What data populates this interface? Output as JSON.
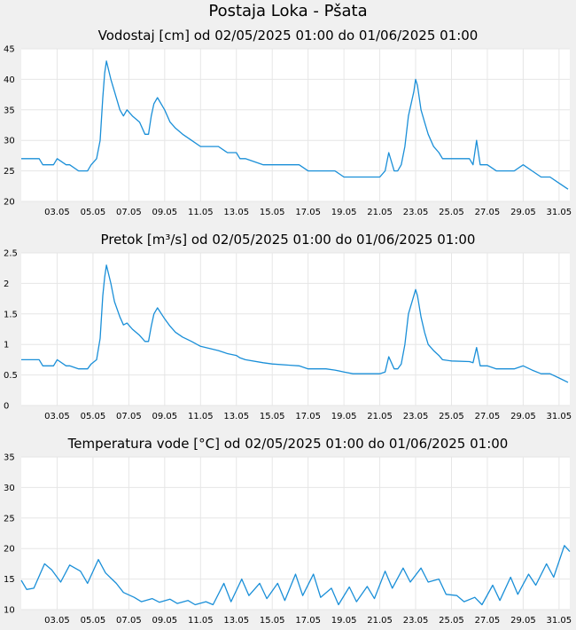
{
  "page_title": "Postaja Loka - Pšata",
  "chart_data": [
    {
      "type": "line",
      "title": "Vodostaj [cm] od 02/05/2025 01:00 do 01/06/2025 01:00",
      "ylim": [
        20,
        45
      ],
      "yticks": [
        "20",
        "25",
        "30",
        "35",
        "40",
        "45"
      ],
      "xlim_days": [
        1.0,
        31.6
      ],
      "xticks": [
        "03.05",
        "05.05",
        "07.05",
        "09.05",
        "11.05",
        "13.05",
        "15.05",
        "17.05",
        "19.05",
        "21.05",
        "23.05",
        "25.05",
        "27.05",
        "29.05",
        "31.05"
      ],
      "grid": true,
      "color": "#1a8fd8",
      "series": [
        {
          "x": [
            1.0,
            2.0,
            2.2,
            2.8,
            3.0,
            3.5,
            3.7,
            4.2,
            4.7,
            4.9,
            5.2,
            5.4,
            5.55,
            5.65,
            5.75,
            6.0,
            6.2,
            6.5,
            6.7,
            6.9,
            7.2,
            7.6,
            7.9,
            8.1,
            8.25,
            8.4,
            8.6,
            9.0,
            9.3,
            9.6,
            10.0,
            10.5,
            11.0,
            12.0,
            12.5,
            13.0,
            13.2,
            13.5,
            14.5,
            15.0,
            16.0,
            16.5,
            17.0,
            18.0,
            18.5,
            19.0,
            19.5,
            20.0,
            20.5,
            21.0,
            21.3,
            21.5,
            21.8,
            22.0,
            22.2,
            22.4,
            22.6,
            22.9,
            23.0,
            23.1,
            23.3,
            23.5,
            23.7,
            24.0,
            24.3,
            24.5,
            25.0,
            26.0,
            26.2,
            26.4,
            26.6,
            27.0,
            27.5,
            28.0,
            28.5,
            29.0,
            29.5,
            30.0,
            30.5,
            31.0,
            31.5
          ],
          "y": [
            27,
            27,
            26,
            26,
            27,
            26,
            26,
            25,
            25,
            26,
            27,
            30,
            37,
            41,
            43,
            40,
            38,
            35,
            34,
            35,
            34,
            33,
            31,
            31,
            34,
            36,
            37,
            35,
            33,
            32,
            31,
            30,
            29,
            29,
            28,
            28,
            27,
            27,
            26,
            26,
            26,
            26,
            25,
            25,
            25,
            24,
            24,
            24,
            24,
            24,
            25,
            28,
            25,
            25,
            26,
            29,
            34,
            38,
            40,
            39,
            35,
            33,
            31,
            29,
            28,
            27,
            27,
            27,
            26,
            30,
            26,
            26,
            25,
            25,
            25,
            26,
            25,
            24,
            24,
            23,
            22
          ]
        }
      ]
    },
    {
      "type": "line",
      "title": "Pretok [m³/s] od 02/05/2025 01:00 do 01/06/2025 01:00",
      "ylim": [
        0,
        2.5
      ],
      "yticks": [
        "0",
        "0.5",
        "1",
        "1.5",
        "2",
        "2.5"
      ],
      "xlim_days": [
        1.0,
        31.6
      ],
      "xticks": [
        "03.05",
        "05.05",
        "07.05",
        "09.05",
        "11.05",
        "13.05",
        "15.05",
        "17.05",
        "19.05",
        "21.05",
        "23.05",
        "25.05",
        "27.05",
        "29.05",
        "31.05"
      ],
      "grid": true,
      "color": "#1a8fd8",
      "series": [
        {
          "x": [
            1.0,
            2.0,
            2.2,
            2.8,
            3.0,
            3.5,
            3.7,
            4.2,
            4.7,
            4.9,
            5.2,
            5.4,
            5.55,
            5.65,
            5.75,
            6.0,
            6.2,
            6.5,
            6.7,
            6.9,
            7.2,
            7.6,
            7.9,
            8.1,
            8.25,
            8.4,
            8.6,
            9.0,
            9.3,
            9.6,
            10.0,
            10.5,
            11.0,
            12.0,
            12.5,
            13.0,
            13.2,
            13.5,
            14.5,
            15.0,
            16.0,
            16.5,
            17.0,
            18.0,
            18.5,
            19.0,
            19.5,
            20.0,
            20.5,
            21.0,
            21.3,
            21.5,
            21.8,
            22.0,
            22.2,
            22.4,
            22.6,
            22.9,
            23.0,
            23.1,
            23.3,
            23.5,
            23.7,
            24.0,
            24.3,
            24.5,
            25.0,
            26.0,
            26.2,
            26.4,
            26.6,
            27.0,
            27.5,
            28.0,
            28.5,
            29.0,
            29.5,
            30.0,
            30.5,
            31.0,
            31.5
          ],
          "y": [
            0.75,
            0.75,
            0.65,
            0.65,
            0.75,
            0.65,
            0.65,
            0.6,
            0.6,
            0.68,
            0.75,
            1.1,
            1.8,
            2.1,
            2.3,
            2.0,
            1.7,
            1.45,
            1.32,
            1.35,
            1.25,
            1.15,
            1.05,
            1.05,
            1.3,
            1.5,
            1.6,
            1.42,
            1.3,
            1.2,
            1.12,
            1.05,
            0.97,
            0.9,
            0.85,
            0.82,
            0.78,
            0.75,
            0.7,
            0.68,
            0.66,
            0.65,
            0.6,
            0.6,
            0.58,
            0.55,
            0.52,
            0.52,
            0.52,
            0.52,
            0.55,
            0.8,
            0.6,
            0.6,
            0.68,
            1.0,
            1.5,
            1.8,
            1.9,
            1.8,
            1.45,
            1.2,
            1.0,
            0.9,
            0.82,
            0.75,
            0.73,
            0.72,
            0.7,
            0.95,
            0.65,
            0.65,
            0.6,
            0.6,
            0.6,
            0.65,
            0.58,
            0.52,
            0.52,
            0.45,
            0.38
          ]
        }
      ]
    },
    {
      "type": "line",
      "title": "Temperatura vode [°C] od 02/05/2025 01:00 do 01/06/2025 01:00",
      "ylim": [
        10,
        35
      ],
      "yticks": [
        "10",
        "15",
        "20",
        "25",
        "30",
        "35"
      ],
      "xlim_days": [
        1.0,
        31.6
      ],
      "xticks": [
        "03.05",
        "05.05",
        "07.05",
        "09.05",
        "11.05",
        "13.05",
        "15.05",
        "17.05",
        "19.05",
        "21.05",
        "23.05",
        "25.05",
        "27.05",
        "29.05",
        "31.05"
      ],
      "grid": true,
      "color": "#1a8fd8",
      "series": [
        {
          "x": [
            1.0,
            1.3,
            1.7,
            2.3,
            2.7,
            3.2,
            3.7,
            4.3,
            4.7,
            5.3,
            5.7,
            6.3,
            6.7,
            7.3,
            7.7,
            8.3,
            8.7,
            9.3,
            9.7,
            10.3,
            10.7,
            11.3,
            11.7,
            12.3,
            12.7,
            13.3,
            13.7,
            14.3,
            14.7,
            15.3,
            15.7,
            16.3,
            16.7,
            17.3,
            17.7,
            18.3,
            18.7,
            19.3,
            19.7,
            20.3,
            20.7,
            21.3,
            21.7,
            22.3,
            22.7,
            23.3,
            23.7,
            24.3,
            24.7,
            25.3,
            25.7,
            26.3,
            26.7,
            27.3,
            27.7,
            28.3,
            28.7,
            29.3,
            29.7,
            30.3,
            30.7,
            31.3,
            31.6
          ],
          "y": [
            14.8,
            13.3,
            13.5,
            17.5,
            16.5,
            14.5,
            17.3,
            16.3,
            14.3,
            18.2,
            16.0,
            14.3,
            12.8,
            12.0,
            11.3,
            11.8,
            11.2,
            11.7,
            11.0,
            11.5,
            10.8,
            11.3,
            10.8,
            14.3,
            11.3,
            15.0,
            12.3,
            14.3,
            11.8,
            14.3,
            11.5,
            15.8,
            12.3,
            15.8,
            12.0,
            13.5,
            10.8,
            13.7,
            11.3,
            13.8,
            11.8,
            16.3,
            13.5,
            16.8,
            14.5,
            16.8,
            14.5,
            15.0,
            12.5,
            12.3,
            11.3,
            12.0,
            10.8,
            14.0,
            11.5,
            15.3,
            12.5,
            15.8,
            14.0,
            17.5,
            15.3,
            20.5,
            19.5
          ]
        }
      ]
    }
  ]
}
